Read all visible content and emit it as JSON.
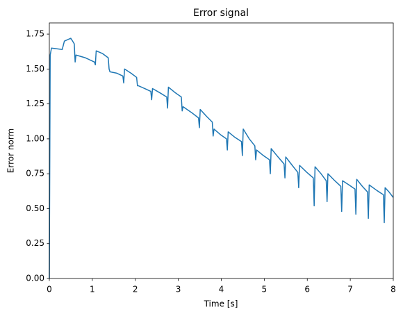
{
  "chart_data": {
    "type": "line",
    "title": "Error signal",
    "xlabel": "Time [s]",
    "ylabel": "Error norm",
    "xlim": [
      0,
      8
    ],
    "xticks": [
      0,
      1,
      2,
      3,
      4,
      5,
      6,
      7,
      8
    ],
    "ylim": [
      0,
      1.83
    ],
    "yticks": [
      {
        "value": 0,
        "label": "0.00"
      },
      {
        "value": 0.25,
        "label": "0.25"
      },
      {
        "value": 0.5,
        "label": "0.50"
      },
      {
        "value": 0.75,
        "label": "0.75"
      },
      {
        "value": 1,
        "label": "1.00"
      },
      {
        "value": 1.25,
        "label": "1.25"
      },
      {
        "value": 1.5,
        "label": "1.50"
      },
      {
        "value": 1.75,
        "label": "1.75"
      }
    ],
    "x": [
      0,
      0.02,
      0.05,
      0.3,
      0.35,
      0.5,
      0.58,
      0.6,
      0.62,
      0.84,
      1.05,
      1.07,
      1.09,
      1.24,
      1.37,
      1.39,
      1.41,
      1.57,
      1.71,
      1.73,
      1.75,
      1.9,
      2.03,
      2.05,
      2.07,
      2.22,
      2.36,
      2.38,
      2.4,
      2.57,
      2.73,
      2.75,
      2.77,
      2.93,
      3.07,
      3.09,
      3.11,
      3.3,
      3.47,
      3.49,
      3.51,
      3.66,
      3.79,
      3.81,
      3.83,
      3.98,
      4.12,
      4.14,
      4.16,
      4.32,
      4.47,
      4.49,
      4.51,
      4.65,
      4.78,
      4.8,
      4.82,
      4.98,
      5.12,
      5.14,
      5.16,
      5.32,
      5.46,
      5.48,
      5.5,
      5.65,
      5.78,
      5.8,
      5.82,
      5.99,
      6.14,
      6.16,
      6.18,
      6.32,
      6.44,
      6.46,
      6.48,
      6.64,
      6.78,
      6.8,
      6.82,
      6.97,
      7.11,
      7.13,
      7.15,
      7.28,
      7.4,
      7.42,
      7.44,
      7.62,
      7.77,
      7.79,
      7.81,
      7.9,
      8
    ],
    "series": [
      {
        "color": "#1f77b4",
        "values": [
          0,
          1.6,
          1.65,
          1.64,
          1.7,
          1.72,
          1.68,
          1.55,
          1.6,
          1.58,
          1.55,
          1.53,
          1.63,
          1.61,
          1.58,
          1.5,
          1.48,
          1.47,
          1.45,
          1.4,
          1.5,
          1.47,
          1.44,
          1.38,
          1.38,
          1.36,
          1.34,
          1.28,
          1.36,
          1.33,
          1.3,
          1.22,
          1.37,
          1.33,
          1.3,
          1.2,
          1.23,
          1.19,
          1.15,
          1.08,
          1.21,
          1.16,
          1.12,
          1.02,
          1.07,
          1.03,
          1,
          0.92,
          1.05,
          1.01,
          0.98,
          0.88,
          1.07,
          1,
          0.95,
          0.85,
          0.92,
          0.88,
          0.85,
          0.75,
          0.93,
          0.87,
          0.82,
          0.72,
          0.87,
          0.81,
          0.76,
          0.65,
          0.81,
          0.76,
          0.72,
          0.52,
          0.8,
          0.75,
          0.7,
          0.55,
          0.75,
          0.7,
          0.66,
          0.48,
          0.7,
          0.67,
          0.64,
          0.46,
          0.71,
          0.66,
          0.62,
          0.43,
          0.67,
          0.63,
          0.6,
          0.4,
          0.65,
          0.62,
          0.58
        ]
      }
    ]
  }
}
